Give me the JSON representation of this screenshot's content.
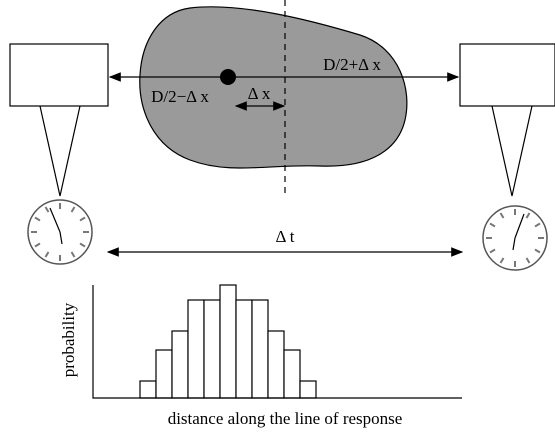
{
  "object": {
    "left_distance": "D/2−Δ x",
    "right_distance": "D/2+Δ x",
    "offset": "Δ x"
  },
  "timing": {
    "difference": "Δ t"
  },
  "histogram": {
    "y_label": "probability",
    "x_label": "distance along the line of response"
  }
}
